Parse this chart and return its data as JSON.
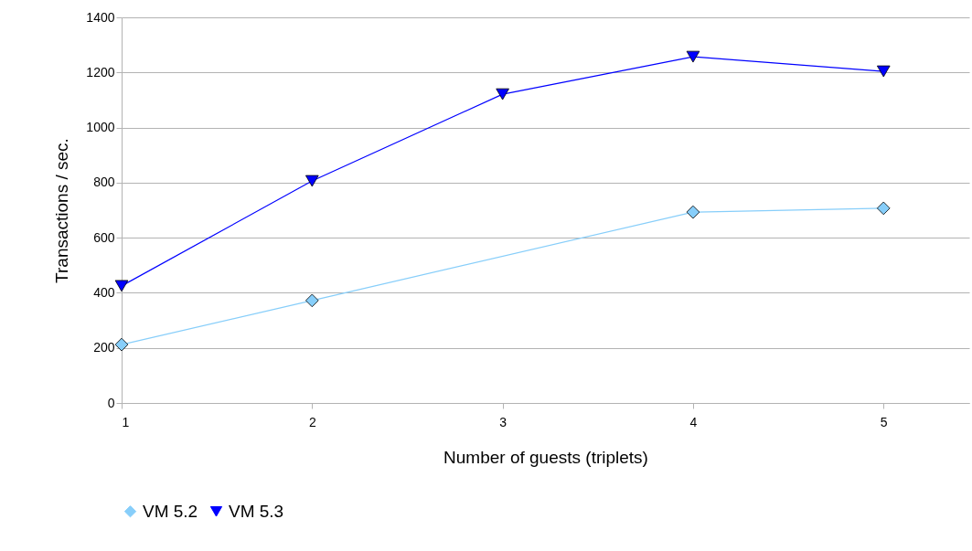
{
  "chart_data": {
    "type": "line",
    "xlabel": "Number of guests (triplets)",
    "ylabel": "Transactions / sec.",
    "xlim": [
      1,
      5.45
    ],
    "xticks": [
      1,
      2,
      3,
      4,
      5
    ],
    "ylim": [
      0,
      1400
    ],
    "yticks": [
      0,
      200,
      400,
      600,
      800,
      1000,
      1200,
      1400
    ],
    "grid": "y",
    "legend": "bottom",
    "series": [
      {
        "name": "VM 5.2",
        "color": "#87cefa",
        "marker": "diamond",
        "x": [
          1,
          2,
          4,
          5
        ],
        "values": [
          212,
          372,
          693,
          707
        ]
      },
      {
        "name": "VM 5.3",
        "color": "#0000ff",
        "marker": "triangle",
        "x": [
          1,
          2,
          3,
          4,
          5
        ],
        "values": [
          425,
          806,
          1121,
          1257,
          1204
        ]
      }
    ]
  }
}
